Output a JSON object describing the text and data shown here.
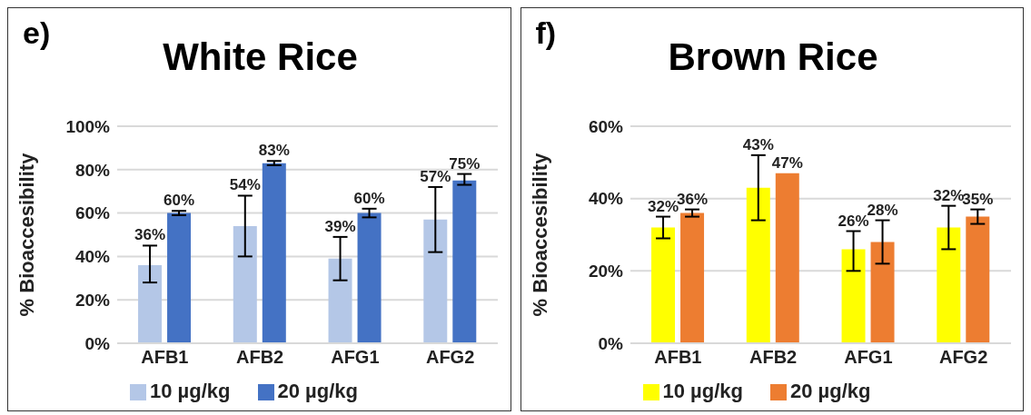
{
  "chart_data": [
    {
      "type": "bar",
      "title": "White Rice",
      "annotations": [
        "e)"
      ],
      "ylabel": "% Bioaccesibility",
      "categories": [
        "AFB1",
        "AFB2",
        "AFG1",
        "AFG2"
      ],
      "series": [
        {
          "name": "10 µg/kg",
          "color": "#b4c7e7",
          "values": [
            36,
            54,
            39,
            57
          ],
          "errors": [
            [
              28,
              45
            ],
            [
              40,
              68
            ],
            [
              29,
              49
            ],
            [
              42,
              72
            ]
          ],
          "value_labels": [
            "36%",
            "54%",
            "39%",
            "57%"
          ]
        },
        {
          "name": "20 µg/kg",
          "color": "#4472c4",
          "values": [
            60,
            83,
            60,
            75
          ],
          "errors": [
            [
              59,
              61
            ],
            [
              82,
              84
            ],
            [
              58,
              62
            ],
            [
              73,
              78
            ]
          ],
          "value_labels": [
            "60%",
            "83%",
            "60%",
            "75%"
          ]
        }
      ],
      "ylim": [
        0,
        100
      ],
      "yticks": [
        {
          "value": 0,
          "label": "0%"
        },
        {
          "value": 20,
          "label": "20%"
        },
        {
          "value": 40,
          "label": "40%"
        },
        {
          "value": 60,
          "label": "60%"
        },
        {
          "value": 80,
          "label": "80%"
        },
        {
          "value": 100,
          "label": "100%"
        }
      ],
      "grid": "y",
      "legend": "bottom"
    },
    {
      "type": "bar",
      "title": "Brown Rice",
      "annotations": [
        "f)"
      ],
      "ylabel": "% Bioaccesibility",
      "categories": [
        "AFB1",
        "AFB2",
        "AFG1",
        "AFG2"
      ],
      "series": [
        {
          "name": "10 µg/kg",
          "color": "#ffff00",
          "values": [
            32,
            43,
            26,
            32
          ],
          "errors": [
            [
              29,
              35
            ],
            [
              34,
              52
            ],
            [
              20,
              31
            ],
            [
              26,
              38
            ]
          ],
          "value_labels": [
            "32%",
            "43%",
            "26%",
            "32%"
          ]
        },
        {
          "name": "20 µg/kg",
          "color": "#ed7d31",
          "values": [
            36,
            47,
            28,
            35
          ],
          "errors": [
            [
              35,
              37
            ],
            null,
            [
              22,
              34
            ],
            [
              33,
              37
            ]
          ],
          "value_labels": [
            "36%",
            "47%",
            "28%",
            "35%"
          ]
        }
      ],
      "ylim": [
        0,
        60
      ],
      "yticks": [
        {
          "value": 0,
          "label": "0%"
        },
        {
          "value": 20,
          "label": "20%"
        },
        {
          "value": 40,
          "label": "40%"
        },
        {
          "value": 60,
          "label": "60%"
        }
      ],
      "grid": "y",
      "legend": "bottom"
    }
  ]
}
